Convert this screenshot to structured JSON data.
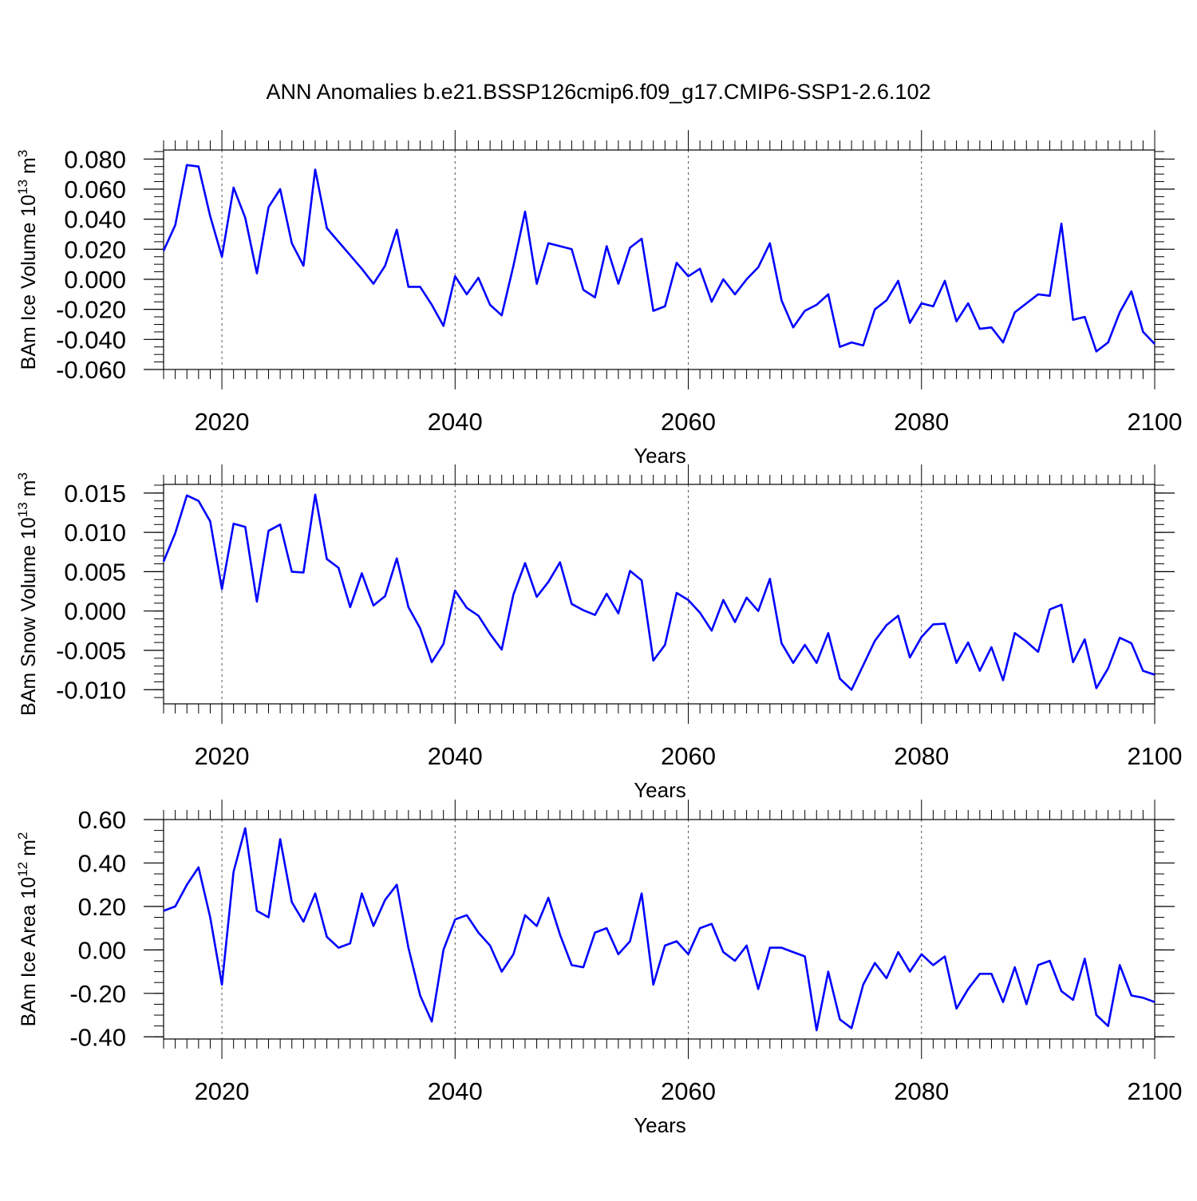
{
  "title": "ANN Anomalies b.e21.BSSP126cmip6.f09_g17.CMIP6-SSP1-2.6.102",
  "line_color": "#0000ff",
  "chart_data": [
    {
      "type": "line",
      "ylabel": {
        "base": "BAm Ice Volume 10",
        "sup": "13",
        "mid": " m",
        "sup2": "3"
      },
      "xlabel": "Years",
      "xlim": [
        2015,
        2100
      ],
      "ylim": [
        -0.06,
        0.086
      ],
      "yticks": [
        0.08,
        0.06,
        0.04,
        0.02,
        0.0,
        -0.02,
        -0.04,
        -0.06
      ],
      "ytick_labels": [
        "0.080",
        "0.060",
        "0.040",
        "0.020",
        "0.000",
        "-0.020",
        "-0.040",
        "-0.060"
      ],
      "yminor_step": 0.005,
      "xticks": [
        2020,
        2040,
        2060,
        2080,
        2100
      ],
      "xtick_labels": [
        "2020",
        "2040",
        "2060",
        "2080",
        "2100"
      ],
      "grid": "dashed vertical at major x ticks",
      "x": [
        2015,
        2016,
        2017,
        2018,
        2019,
        2020,
        2021,
        2022,
        2023,
        2024,
        2025,
        2026,
        2027,
        2028,
        2029,
        2030,
        2031,
        2032,
        2033,
        2034,
        2035,
        2036,
        2037,
        2038,
        2039,
        2040,
        2041,
        2042,
        2043,
        2044,
        2045,
        2046,
        2047,
        2048,
        2049,
        2050,
        2051,
        2052,
        2053,
        2054,
        2055,
        2056,
        2057,
        2058,
        2059,
        2060,
        2061,
        2062,
        2063,
        2064,
        2065,
        2066,
        2067,
        2068,
        2069,
        2070,
        2071,
        2072,
        2073,
        2074,
        2075,
        2076,
        2077,
        2078,
        2079,
        2080,
        2081,
        2082,
        2083,
        2084,
        2085,
        2086,
        2087,
        2088,
        2089,
        2090,
        2091,
        2092,
        2093,
        2094,
        2095,
        2096,
        2097,
        2098,
        2099,
        2100
      ],
      "y": [
        0.019,
        0.036,
        0.076,
        0.075,
        0.042,
        0.015,
        0.061,
        0.041,
        0.004,
        0.048,
        0.06,
        0.024,
        0.009,
        0.073,
        0.034,
        0.025,
        0.016,
        0.007,
        -0.003,
        0.009,
        0.033,
        -0.005,
        -0.005,
        -0.017,
        -0.031,
        0.002,
        -0.01,
        0.001,
        -0.017,
        -0.024,
        0.009,
        0.045,
        -0.003,
        0.024,
        0.022,
        0.02,
        -0.007,
        -0.012,
        0.022,
        -0.003,
        0.021,
        0.027,
        -0.021,
        -0.018,
        0.011,
        0.002,
        0.007,
        -0.015,
        0.0,
        -0.01,
        0.0,
        0.008,
        0.024,
        -0.014,
        -0.032,
        -0.021,
        -0.017,
        -0.01,
        -0.045,
        -0.042,
        -0.044,
        -0.02,
        -0.014,
        -0.001,
        -0.029,
        -0.016,
        -0.018,
        -0.001,
        -0.028,
        -0.016,
        -0.033,
        -0.032,
        -0.042,
        -0.022,
        -0.016,
        -0.01,
        -0.011,
        0.037,
        -0.027,
        -0.025,
        -0.048,
        -0.042,
        -0.022,
        -0.008,
        -0.035,
        -0.043
      ]
    },
    {
      "type": "line",
      "ylabel": {
        "base": "BAm Snow Volume 10",
        "sup": "13",
        "mid": " m",
        "sup2": "3"
      },
      "xlabel": "Years",
      "xlim": [
        2015,
        2100
      ],
      "ylim": [
        -0.0118,
        0.0161
      ],
      "yticks": [
        0.015,
        0.01,
        0.005,
        0.0,
        -0.005,
        -0.01
      ],
      "ytick_labels": [
        "0.015",
        "0.010",
        "0.005",
        "0.000",
        "-0.005",
        "-0.010"
      ],
      "yminor_step": 0.001,
      "xticks": [
        2020,
        2040,
        2060,
        2080,
        2100
      ],
      "xtick_labels": [
        "2020",
        "2040",
        "2060",
        "2080",
        "2100"
      ],
      "grid": "dashed vertical at major x ticks",
      "x": [
        2015,
        2016,
        2017,
        2018,
        2019,
        2020,
        2021,
        2022,
        2023,
        2024,
        2025,
        2026,
        2027,
        2028,
        2029,
        2030,
        2031,
        2032,
        2033,
        2034,
        2035,
        2036,
        2037,
        2038,
        2039,
        2040,
        2041,
        2042,
        2043,
        2044,
        2045,
        2046,
        2047,
        2048,
        2049,
        2050,
        2051,
        2052,
        2053,
        2054,
        2055,
        2056,
        2057,
        2058,
        2059,
        2060,
        2061,
        2062,
        2063,
        2064,
        2065,
        2066,
        2067,
        2068,
        2069,
        2070,
        2071,
        2072,
        2073,
        2074,
        2075,
        2076,
        2077,
        2078,
        2079,
        2080,
        2081,
        2082,
        2083,
        2084,
        2085,
        2086,
        2087,
        2088,
        2089,
        2090,
        2091,
        2092,
        2093,
        2094,
        2095,
        2096,
        2097,
        2098,
        2099,
        2100
      ],
      "y": [
        0.0063,
        0.0099,
        0.0147,
        0.014,
        0.0114,
        0.0028,
        0.0111,
        0.0107,
        0.0012,
        0.0102,
        0.011,
        0.005,
        0.0049,
        0.0148,
        0.0066,
        0.0055,
        0.0005,
        0.0048,
        0.0007,
        0.0019,
        0.0067,
        0.0005,
        -0.0022,
        -0.0065,
        -0.0042,
        0.0026,
        0.0004,
        -0.0006,
        -0.0029,
        -0.0049,
        0.0021,
        0.0061,
        0.0018,
        0.0037,
        0.0062,
        0.0009,
        0.0001,
        -0.0005,
        0.0022,
        -0.0003,
        0.0051,
        0.0039,
        -0.0063,
        -0.0043,
        0.0023,
        0.0014,
        -0.0002,
        -0.0025,
        0.0014,
        -0.0014,
        0.0017,
        0.0,
        0.0041,
        -0.0041,
        -0.0066,
        -0.0043,
        -0.0066,
        -0.0028,
        -0.0086,
        -0.01,
        -0.0069,
        -0.0038,
        -0.0018,
        -0.0006,
        -0.0059,
        -0.0033,
        -0.0017,
        -0.0016,
        -0.0066,
        -0.004,
        -0.0076,
        -0.0046,
        -0.0088,
        -0.0028,
        -0.0039,
        -0.0052,
        0.0002,
        0.0008,
        -0.0065,
        -0.0036,
        -0.0098,
        -0.0073,
        -0.0034,
        -0.0041,
        -0.0076,
        -0.0081
      ]
    },
    {
      "type": "line",
      "ylabel": {
        "base": "BAm Ice Area 10",
        "sup": "12",
        "mid": " m",
        "sup2": "2"
      },
      "xlabel": "Years",
      "xlim": [
        2015,
        2100
      ],
      "ylim": [
        -0.41,
        0.6
      ],
      "yticks": [
        0.6,
        0.4,
        0.2,
        0.0,
        -0.2,
        -0.4
      ],
      "ytick_labels": [
        "0.60",
        "0.40",
        "0.20",
        "0.00",
        "-0.20",
        "-0.40"
      ],
      "yminor_step": 0.05,
      "xticks": [
        2020,
        2040,
        2060,
        2080,
        2100
      ],
      "xtick_labels": [
        "2020",
        "2040",
        "2060",
        "2080",
        "2100"
      ],
      "grid": "dashed vertical at major x ticks",
      "x": [
        2015,
        2016,
        2017,
        2018,
        2019,
        2020,
        2021,
        2022,
        2023,
        2024,
        2025,
        2026,
        2027,
        2028,
        2029,
        2030,
        2031,
        2032,
        2033,
        2034,
        2035,
        2036,
        2037,
        2038,
        2039,
        2040,
        2041,
        2042,
        2043,
        2044,
        2045,
        2046,
        2047,
        2048,
        2049,
        2050,
        2051,
        2052,
        2053,
        2054,
        2055,
        2056,
        2057,
        2058,
        2059,
        2060,
        2061,
        2062,
        2063,
        2064,
        2065,
        2066,
        2067,
        2068,
        2069,
        2070,
        2071,
        2072,
        2073,
        2074,
        2075,
        2076,
        2077,
        2078,
        2079,
        2080,
        2081,
        2082,
        2083,
        2084,
        2085,
        2086,
        2087,
        2088,
        2089,
        2090,
        2091,
        2092,
        2093,
        2094,
        2095,
        2096,
        2097,
        2098,
        2099,
        2100
      ],
      "y": [
        0.18,
        0.2,
        0.3,
        0.38,
        0.15,
        -0.16,
        0.36,
        0.56,
        0.18,
        0.15,
        0.51,
        0.22,
        0.13,
        0.26,
        0.06,
        0.01,
        0.03,
        0.26,
        0.11,
        0.23,
        0.3,
        0.01,
        -0.21,
        -0.33,
        0.0,
        0.14,
        0.16,
        0.08,
        0.02,
        -0.1,
        -0.02,
        0.16,
        0.11,
        0.24,
        0.07,
        -0.07,
        -0.08,
        0.08,
        0.1,
        -0.02,
        0.04,
        0.26,
        -0.16,
        0.02,
        0.04,
        -0.02,
        0.1,
        0.12,
        -0.01,
        -0.05,
        0.02,
        -0.18,
        0.01,
        0.01,
        -0.01,
        -0.03,
        -0.37,
        -0.1,
        -0.32,
        -0.36,
        -0.16,
        -0.06,
        -0.13,
        -0.01,
        -0.1,
        -0.02,
        -0.07,
        -0.03,
        -0.27,
        -0.18,
        -0.11,
        -0.11,
        -0.24,
        -0.08,
        -0.25,
        -0.07,
        -0.05,
        -0.19,
        -0.23,
        -0.04,
        -0.3,
        -0.35,
        -0.07,
        -0.21,
        -0.22,
        -0.24
      ]
    }
  ]
}
